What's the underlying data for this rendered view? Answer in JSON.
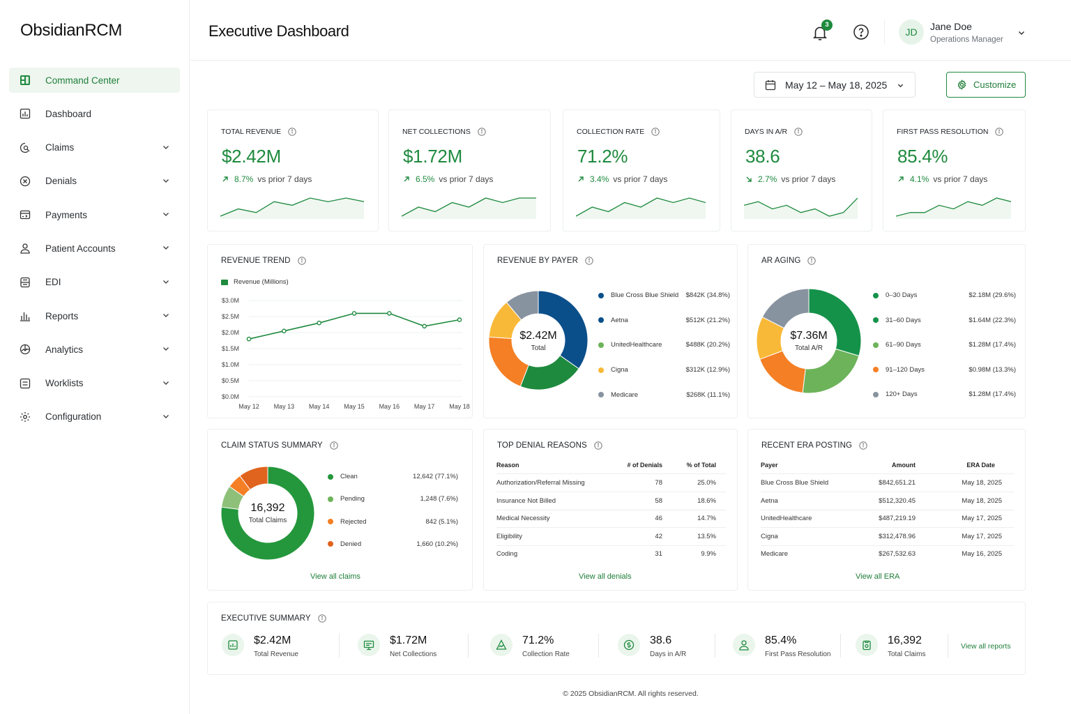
{
  "app": {
    "brand": "ObsidianRCM",
    "page_title": "Executive Dashboard"
  },
  "sidebar": {
    "items": [
      {
        "label": "Command Center",
        "icon": "command-center-icon",
        "active": true,
        "expandable": false
      },
      {
        "label": "Dashboard",
        "icon": "dashboard-icon",
        "expandable": false
      },
      {
        "label": "Claims",
        "icon": "claims-icon",
        "expandable": true
      },
      {
        "label": "Denials",
        "icon": "denials-icon",
        "expandable": true
      },
      {
        "label": "Payments",
        "icon": "payments-icon",
        "expandable": true
      },
      {
        "label": "Patient Accounts",
        "icon": "patient-accounts-icon",
        "expandable": true
      },
      {
        "label": "EDI",
        "icon": "edi-icon",
        "expandable": true
      },
      {
        "label": "Reports",
        "icon": "reports-icon",
        "expandable": true
      },
      {
        "label": "Analytics",
        "icon": "analytics-icon",
        "expandable": true
      },
      {
        "label": "Worklists",
        "icon": "worklists-icon",
        "expandable": true
      },
      {
        "label": "Configuration",
        "icon": "configuration-icon",
        "expandable": true
      }
    ]
  },
  "header": {
    "notifications_count": "3",
    "user": {
      "initials": "JD",
      "name": "Jane Doe",
      "role": "Operations Manager"
    }
  },
  "toolbar": {
    "date_range": "May 12 – May 18, 2025",
    "customize_label": "Customize"
  },
  "kpis": [
    {
      "label": "TOTAL REVENUE",
      "value": "$2.42M",
      "delta": "8.7%",
      "direction": "up",
      "compare": "vs prior 7 days",
      "spark": [
        2,
        4,
        3,
        6,
        5,
        7,
        6,
        7,
        6
      ]
    },
    {
      "label": "NET COLLECTIONS",
      "value": "$1.72M",
      "delta": "6.5%",
      "direction": "up",
      "compare": "vs prior 7 days",
      "spark": [
        2,
        4,
        3,
        5,
        4,
        6,
        5,
        6,
        6
      ]
    },
    {
      "label": "COLLECTION RATE",
      "value": "71.2%",
      "delta": "3.4%",
      "direction": "up",
      "compare": "vs prior 7 days",
      "spark": [
        2,
        4,
        3,
        5,
        4,
        6,
        5,
        6,
        5
      ]
    },
    {
      "label": "DAYS IN A/R",
      "value": "38.6",
      "delta": "2.7%",
      "direction": "down",
      "compare": "vs prior 7 days",
      "spark": [
        5,
        6,
        4,
        5,
        3,
        4,
        2,
        3,
        7
      ]
    },
    {
      "label": "FIRST PASS RESOLUTION",
      "value": "85.4%",
      "delta": "4.1%",
      "direction": "up",
      "compare": "vs prior 7 days",
      "spark": [
        2,
        3,
        3,
        5,
        4,
        6,
        5,
        7,
        6
      ]
    }
  ],
  "revenue_trend": {
    "title": "REVENUE TREND",
    "legend": "Revenue (Millions)",
    "ytick_labels": [
      "$3.0M",
      "$2.5M",
      "$2.0M",
      "$1.5M",
      "$1.0M",
      "$0.5M",
      "$0.0M"
    ],
    "chart_data": {
      "type": "line",
      "categories": [
        "May 12",
        "May 13",
        "May 14",
        "May 15",
        "May 16",
        "May 17",
        "May 18"
      ],
      "series": [
        {
          "name": "Revenue (Millions)",
          "values": [
            1.8,
            2.05,
            2.3,
            2.6,
            2.6,
            2.2,
            2.4
          ]
        }
      ],
      "ylim": [
        0,
        3.0
      ]
    }
  },
  "revenue_by_payer": {
    "title": "REVENUE BY PAYER",
    "center_value": "$2.42M",
    "center_label": "Total",
    "chart_data": {
      "type": "pie",
      "slices": [
        {
          "label": "Blue Cross Blue Shield",
          "display": "$842K (34.8%)",
          "value": 34.8,
          "color": "#0b4f8a"
        },
        {
          "label": "Aetna",
          "display": "$512K (21.2%)",
          "value": 21.2,
          "color": "#1e8a3e"
        },
        {
          "label": "UnitedHealthcare",
          "display": "$488K (20.2%)",
          "value": 20.2,
          "color": "#f47f24"
        },
        {
          "label": "Cigna",
          "display": "$312K (12.9%)",
          "value": 12.9,
          "color": "#f9b938"
        },
        {
          "label": "Medicare",
          "display": "$268K (11.1%)",
          "value": 11.1,
          "color": "#8893a0"
        }
      ]
    },
    "legend_colors": [
      "#0b4f8a",
      "#0b4f8a",
      "#6cb35a",
      "#f9b938",
      "#8893a0"
    ]
  },
  "ar_aging": {
    "title": "AR AGING",
    "center_value": "$7.36M",
    "center_label": "Total A/R",
    "chart_data": {
      "type": "pie",
      "slices": [
        {
          "label": "0–30 Days",
          "display": "$2.18M (29.6%)",
          "value": 29.6,
          "color": "#15924a"
        },
        {
          "label": "31–60 Days",
          "display": "$1.64M (22.3%)",
          "value": 22.3,
          "color": "#6cb35a"
        },
        {
          "label": "61–90 Days",
          "display": "$1.28M (17.4%)",
          "value": 17.4,
          "color": "#f47f24"
        },
        {
          "label": "91–120 Days",
          "display": "$0.98M (13.3%)",
          "value": 13.3,
          "color": "#f9b938"
        },
        {
          "label": "120+ Days",
          "display": "$1.28M (17.4%)",
          "value": 17.4,
          "color": "#8893a0"
        }
      ]
    },
    "legend_colors": [
      "#15924a",
      "#15924a",
      "#6cb35a",
      "#f47f24",
      "#8893a0"
    ]
  },
  "claim_status": {
    "title": "CLAIM STATUS SUMMARY",
    "center_value": "16,392",
    "center_label": "Total Claims",
    "link": "View all claims",
    "chart_data": {
      "type": "pie",
      "slices": [
        {
          "label": "Clean",
          "display": "12,642 (77.1%)",
          "value": 77.1,
          "color": "#24973c"
        },
        {
          "label": "Pending",
          "display": "1,248 (7.6%)",
          "value": 7.6,
          "color": "#8fc07a"
        },
        {
          "label": "Rejected",
          "display": "842 (5.1%)",
          "value": 5.1,
          "color": "#f47f24"
        },
        {
          "label": "Denied",
          "display": "1,660 (10.2%)",
          "value": 10.2,
          "color": "#e0631e"
        }
      ]
    },
    "legend_colors": [
      "#24973c",
      "#6cb35a",
      "#f47f24",
      "#e0631e"
    ]
  },
  "top_denials": {
    "title": "TOP DENIAL REASONS",
    "columns": [
      "Reason",
      "# of Denials",
      "% of Total"
    ],
    "rows": [
      [
        "Authorization/Referral Missing",
        "78",
        "25.0%"
      ],
      [
        "Insurance Not Billed",
        "58",
        "18.6%"
      ],
      [
        "Medical Necessity",
        "46",
        "14.7%"
      ],
      [
        "Eligibility",
        "42",
        "13.5%"
      ],
      [
        "Coding",
        "31",
        "9.9%"
      ]
    ],
    "link": "View all denials"
  },
  "recent_era": {
    "title": "RECENT ERA POSTING",
    "columns": [
      "Payer",
      "Amount",
      "ERA Date"
    ],
    "rows": [
      [
        "Blue Cross Blue Shield",
        "$842,651.21",
        "May 18, 2025"
      ],
      [
        "Aetna",
        "$512,320.45",
        "May 18, 2025"
      ],
      [
        "UnitedHealthcare",
        "$487,219.19",
        "May 17, 2025"
      ],
      [
        "Cigna",
        "$312,478.96",
        "May 17, 2025"
      ],
      [
        "Medicare",
        "$267,532.63",
        "May 16, 2025"
      ]
    ],
    "link": "View all ERA"
  },
  "executive_summary": {
    "title": "EXECUTIVE SUMMARY",
    "items": [
      {
        "value": "$2.42M",
        "label": "Total Revenue",
        "icon": "revenue-chart-icon"
      },
      {
        "value": "$1.72M",
        "label": "Net Collections",
        "icon": "monitor-icon"
      },
      {
        "value": "71.2%",
        "label": "Collection Rate",
        "icon": "users-icon"
      },
      {
        "value": "38.6",
        "label": "Days in A/R",
        "icon": "dollar-clock-icon"
      },
      {
        "value": "85.4%",
        "label": "First Pass Resolution",
        "icon": "person-icon"
      },
      {
        "value": "16,392",
        "label": "Total Claims",
        "icon": "clipboard-icon"
      }
    ],
    "link": "View all reports"
  },
  "footer": "© 2025 ObsidianRCM. All rights reserved."
}
